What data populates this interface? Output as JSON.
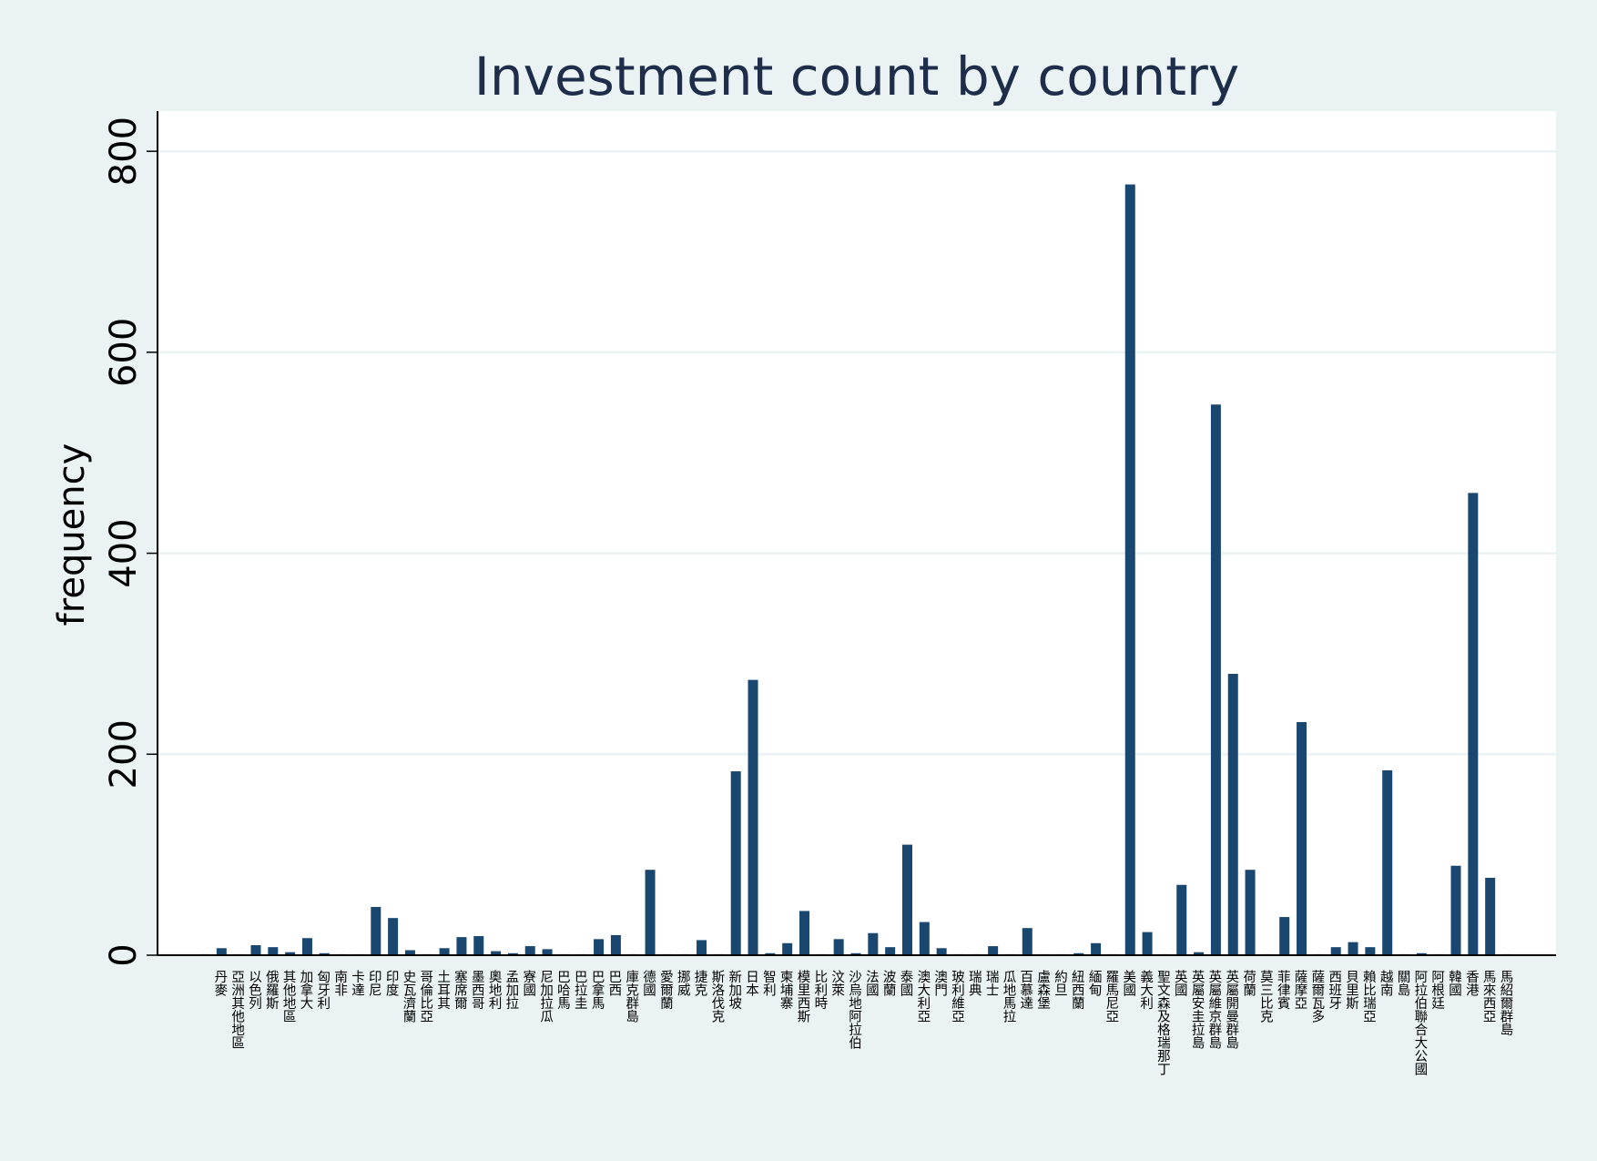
{
  "chart_data": {
    "type": "bar",
    "title": "Investment count by country",
    "ylabel": "frequency",
    "categories": [
      null,
      "丹麥",
      "亞洲其他地區",
      "以色列",
      "俄羅斯",
      "其他地區",
      "加拿大",
      "匈牙利",
      "南非",
      "卡達",
      "印尼",
      "印度",
      "史瓦濟蘭",
      "哥倫比亞",
      "土耳其",
      "塞席爾",
      "墨西哥",
      "奧地利",
      "孟加拉",
      "寮國",
      "尼加拉瓜",
      "巴哈馬",
      "巴拉圭",
      "巴拿馬",
      "巴西",
      "庫克群島",
      "德國",
      "愛爾蘭",
      "挪威",
      "捷克",
      "斯洛伐克",
      "新加坡",
      "日本",
      "智利",
      "柬埔寨",
      "模里西斯",
      "比利時",
      "汶萊",
      "沙烏地阿拉伯",
      "法國",
      "波蘭",
      "泰國",
      "澳大利亞",
      "澳門",
      "玻利維亞",
      "瑞典",
      "瑞士",
      "瓜地馬拉",
      "百慕達",
      "盧森堡",
      "約旦",
      "紐西蘭",
      "緬甸",
      "羅馬尼亞",
      "美國",
      "義大利",
      "聖文森及格瑞那丁",
      "英國",
      "英屬安圭拉島",
      "英屬維京群島",
      "英屬開曼群島",
      "荷蘭",
      "莫三比克",
      "菲律賓",
      "薩摩亞",
      "薩爾瓦多",
      "西班牙",
      "貝里斯",
      "賴比瑞亞",
      "越南",
      "關島",
      "阿拉伯聯合大公國",
      "阿根廷",
      "韓國",
      "香港",
      "馬來西亞",
      "馬紹爾群島"
    ],
    "values": [
      1,
      7,
      1,
      10,
      8,
      3,
      17,
      2,
      1,
      1,
      48,
      37,
      5,
      1,
      7,
      18,
      19,
      4,
      2,
      9,
      6,
      1,
      1,
      16,
      20,
      1,
      85,
      1,
      1,
      15,
      1,
      183,
      274,
      2,
      12,
      44,
      1,
      16,
      2,
      22,
      8,
      110,
      33,
      7,
      1,
      1,
      9,
      1,
      27,
      1,
      1,
      2,
      12,
      1,
      767,
      23,
      1,
      70,
      3,
      548,
      280,
      85,
      1,
      38,
      232,
      1,
      8,
      13,
      8,
      184,
      1,
      2,
      1,
      89,
      460,
      77,
      1
    ],
    "color": "#1a476f",
    "ylim": [
      0,
      840
    ],
    "yticks": [
      0,
      200,
      400,
      600,
      800
    ],
    "grid": true
  }
}
